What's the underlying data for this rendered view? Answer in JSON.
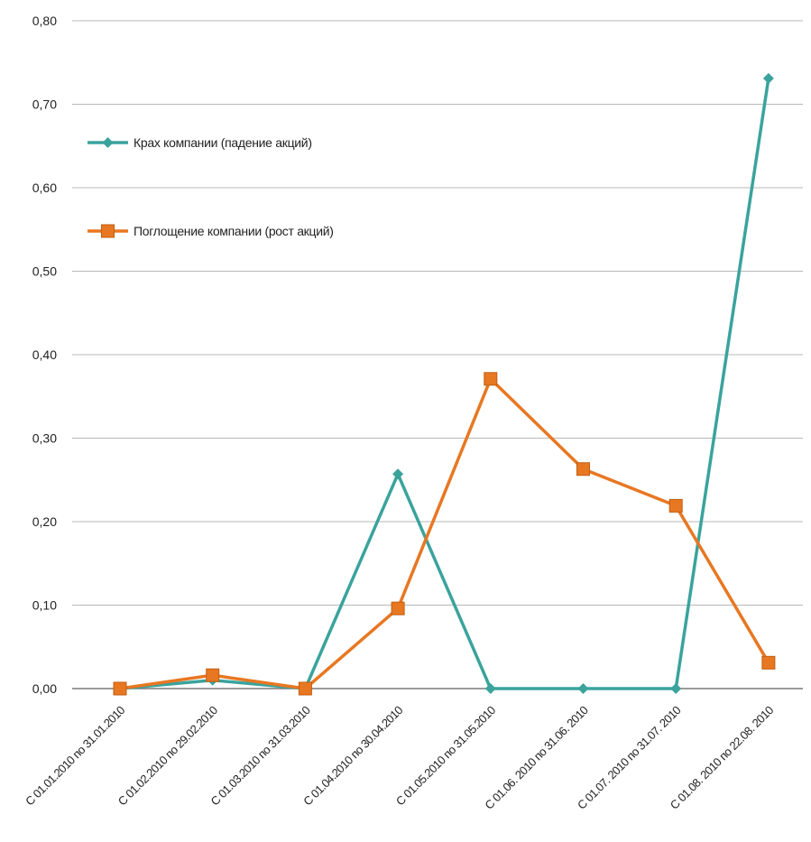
{
  "chart_data": {
    "type": "line",
    "title": "",
    "xlabel": "",
    "ylabel": "",
    "ylim": [
      0,
      0.8
    ],
    "yticks": [
      "0,00",
      "0,10",
      "0,20",
      "0,30",
      "0,40",
      "0,50",
      "0,60",
      "0,70",
      "0,80"
    ],
    "grid": true,
    "legend_position": "top-left",
    "categories": [
      "С 01.01.2010 по 31.01.2010",
      "С 01.02.2010 по 29.02.2010",
      "С 01.03.2010 по 31.03.2010",
      "С 01.04.2010 по 30.04.2010",
      "С 01.05.2010 по 31.05.2010",
      "С 01.06. 2010 по 31.06. 2010",
      "С 01.07. 2010 по 31.07. 2010",
      "С 01.08. 2010 по 22.08. 2010"
    ],
    "series": [
      {
        "name": "Крах компании (падение акций)",
        "color": "#3aa39c",
        "marker": "diamond",
        "values": [
          0.0,
          0.01,
          0.0,
          0.257,
          0.0,
          0.0,
          0.0,
          0.731
        ]
      },
      {
        "name": "Поглощение компании (рост акций)",
        "color": "#e87722",
        "marker": "square",
        "values": [
          0.0,
          0.016,
          0.0,
          0.096,
          0.371,
          0.263,
          0.219,
          0.031
        ]
      }
    ]
  }
}
